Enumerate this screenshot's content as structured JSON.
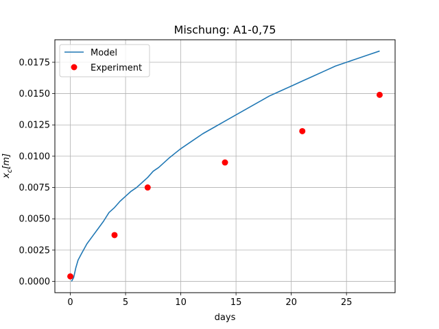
{
  "chart_data": {
    "type": "line",
    "title": "Mischung: A1-0,75",
    "xlabel": "days",
    "ylabel": "x_c[m]",
    "xlim": [
      -1.4,
      29.4
    ],
    "ylim": [
      -0.0009,
      0.0193
    ],
    "grid": true,
    "legend_position": "top-left",
    "x_ticks": [
      0,
      5,
      10,
      15,
      20,
      25
    ],
    "x_tick_labels": [
      "0",
      "5",
      "10",
      "15",
      "20",
      "25"
    ],
    "y_ticks": [
      0.0,
      0.0025,
      0.005,
      0.0075,
      0.01,
      0.0125,
      0.015,
      0.0175
    ],
    "y_tick_labels": [
      "0.0000",
      "0.0025",
      "0.0050",
      "0.0075",
      "0.0100",
      "0.0125",
      "0.0150",
      "0.0175"
    ],
    "series": [
      {
        "name": "Model",
        "kind": "line",
        "color": "#1f77b4",
        "x": [
          0.1,
          0.3,
          0.5,
          0.7,
          1.0,
          1.5,
          2.0,
          2.5,
          3.0,
          3.5,
          4.0,
          4.5,
          5.0,
          5.5,
          6.0,
          6.5,
          7.0,
          7.5,
          8.0,
          9.0,
          10.0,
          11.0,
          12.0,
          13.0,
          14.0,
          15.0,
          16.0,
          17.0,
          18.0,
          19.0,
          20.0,
          21.0,
          22.0,
          23.0,
          24.0,
          25.0,
          26.0,
          27.0,
          28.0
        ],
        "y": [
          0.0,
          0.0003,
          0.0011,
          0.0017,
          0.0022,
          0.003,
          0.0036,
          0.0042,
          0.0048,
          0.0055,
          0.0059,
          0.0064,
          0.0068,
          0.0072,
          0.0075,
          0.0079,
          0.0083,
          0.0088,
          0.0091,
          0.0099,
          0.0106,
          0.0112,
          0.0118,
          0.0123,
          0.0128,
          0.0133,
          0.0138,
          0.0143,
          0.0148,
          0.0152,
          0.0156,
          0.016,
          0.0164,
          0.0168,
          0.0172,
          0.0175,
          0.0178,
          0.0181,
          0.0184
        ]
      },
      {
        "name": "Experiment",
        "kind": "scatter",
        "color": "#ff0000",
        "x": [
          0,
          4,
          7,
          14,
          21,
          28
        ],
        "y": [
          0.0004,
          0.0037,
          0.0075,
          0.0095,
          0.012,
          0.0149
        ]
      }
    ]
  }
}
